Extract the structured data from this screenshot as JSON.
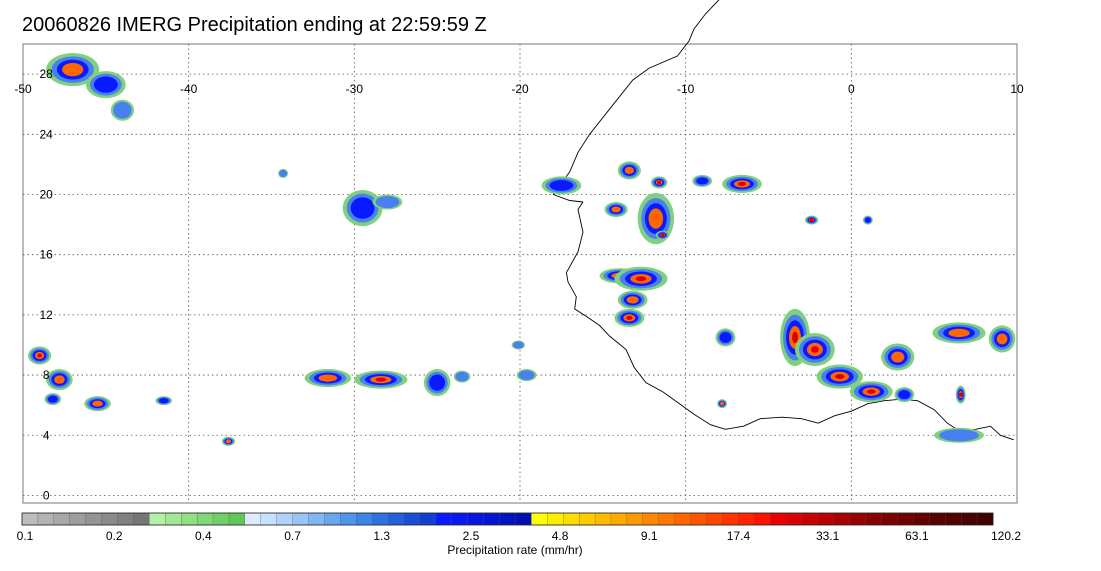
{
  "title": "20060826 IMERG Precipitation ending at 22:59:59 Z",
  "map": {
    "lon_range": [
      -50,
      10
    ],
    "lat_range": [
      -0.5,
      30
    ],
    "lon_ticks": [
      "-50",
      "-40",
      "-30",
      "-20",
      "-10",
      "0",
      "10"
    ],
    "lat_ticks": [
      "0",
      "4",
      "8",
      "12",
      "16",
      "20",
      "24",
      "28"
    ],
    "gridlines": "dotted"
  },
  "colorbar": {
    "label": "Precipitation rate (mm/hr)",
    "tick_labels": [
      "0.1",
      "0.2",
      "0.4",
      "0.7",
      "1.3",
      "2.5",
      "4.8",
      "9.1",
      "17.4",
      "33.1",
      "63.1",
      "120.2"
    ],
    "colors": [
      "#bdbdbd",
      "#b3b3b3",
      "#a8a8a8",
      "#9e9e9e",
      "#949494",
      "#8a8a8a",
      "#808080",
      "#767676",
      "#b2f0a6",
      "#a2e896",
      "#92e086",
      "#82d776",
      "#72cf68",
      "#62c65a",
      "#dcecff",
      "#c8e0ff",
      "#b0d2fb",
      "#98c4f6",
      "#80b6f2",
      "#68a6ee",
      "#5096ea",
      "#3c86e6",
      "#2e72e2",
      "#2460dc",
      "#1a4ed6",
      "#1040d0",
      "#0a1aff",
      "#0818f0",
      "#0616e0",
      "#0414d0",
      "#0212c0",
      "#0010b0",
      "#ffff00",
      "#ffee00",
      "#ffdd00",
      "#ffcc00",
      "#ffbb00",
      "#ffaa00",
      "#ff9900",
      "#ff8800",
      "#ff7700",
      "#ff6600",
      "#ff5500",
      "#ff4400",
      "#ff3300",
      "#ff2200",
      "#ff1100",
      "#e80000",
      "#d80000",
      "#c80000",
      "#b80000",
      "#a80000",
      "#980000",
      "#880000",
      "#7a0000",
      "#6e0000",
      "#620000",
      "#580000",
      "#500000",
      "#480000",
      "#400000"
    ]
  },
  "colors": {
    "coastline": "#000000",
    "grid": "#555555",
    "light_rain": "#7fd07f",
    "moderate_rain": "#4a7ff0",
    "heavy_rain": "#0a1aff",
    "intense_rain": "#ff6600",
    "extreme_rain": "#d80000"
  }
}
